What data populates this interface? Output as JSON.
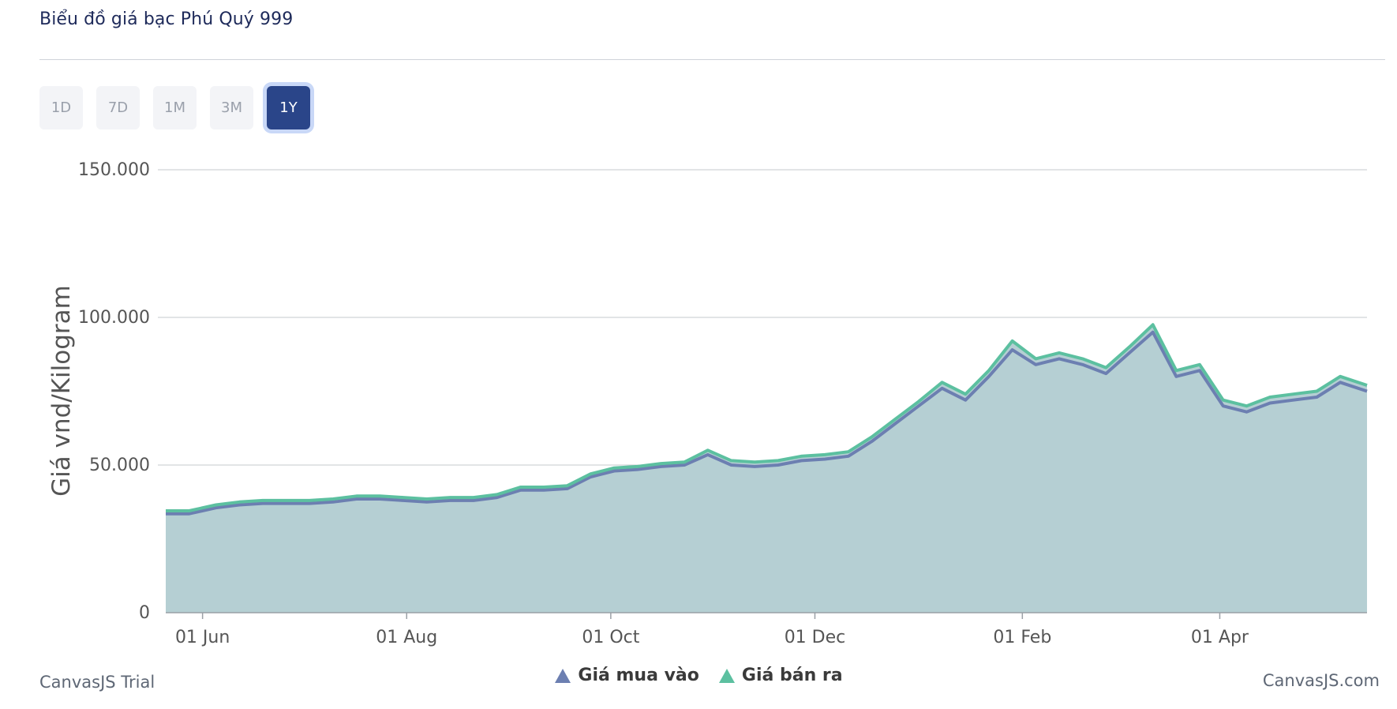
{
  "page": {
    "title": "Biểu đồ giá bạc Phú Quý 999"
  },
  "range_buttons": [
    {
      "label": "1D",
      "active": false
    },
    {
      "label": "7D",
      "active": false
    },
    {
      "label": "1M",
      "active": false
    },
    {
      "label": "3M",
      "active": false
    },
    {
      "label": "1Y",
      "active": true
    }
  ],
  "footer": {
    "left": "CanvasJS Trial",
    "right": "CanvasJS.com"
  },
  "colors": {
    "buy": "#6c7fb1",
    "sell": "#5cc0a0",
    "area": "#b5cfd3",
    "active_button": "#2a4589"
  },
  "chart_data": {
    "type": "area",
    "ylabel": "Giá vnd/Kilogram",
    "ylim": [
      0,
      150000
    ],
    "y_ticks": [
      "150.000",
      "100.000",
      "50.000",
      "0"
    ],
    "x_ticks": [
      "01 Jun",
      "01 Aug",
      "01 Oct",
      "01 Dec",
      "01 Feb",
      "01 Apr"
    ],
    "x_tick_dates": [
      "2025-06-01",
      "2025-08-01",
      "2025-10-01",
      "2025-12-01",
      "2026-02-01",
      "2026-04-01"
    ],
    "x_range": [
      "2025-05-21",
      "2026-05-15"
    ],
    "grid": true,
    "legend_position": "bottom",
    "x": [
      "2025-05-21",
      "2025-05-28",
      "2025-06-05",
      "2025-06-12",
      "2025-06-19",
      "2025-06-26",
      "2025-07-03",
      "2025-07-10",
      "2025-07-17",
      "2025-07-24",
      "2025-07-31",
      "2025-08-07",
      "2025-08-14",
      "2025-08-21",
      "2025-08-28",
      "2025-09-04",
      "2025-09-11",
      "2025-09-18",
      "2025-09-25",
      "2025-10-02",
      "2025-10-09",
      "2025-10-16",
      "2025-10-23",
      "2025-10-30",
      "2025-11-06",
      "2025-11-13",
      "2025-11-20",
      "2025-11-27",
      "2025-12-04",
      "2025-12-11",
      "2025-12-18",
      "2025-12-25",
      "2026-01-01",
      "2026-01-08",
      "2026-01-15",
      "2026-01-22",
      "2026-01-29",
      "2026-02-05",
      "2026-02-12",
      "2026-02-19",
      "2026-02-26",
      "2026-03-05",
      "2026-03-12",
      "2026-03-19",
      "2026-03-26",
      "2026-04-02",
      "2026-04-09",
      "2026-04-16",
      "2026-04-23",
      "2026-04-30",
      "2026-05-07",
      "2026-05-15"
    ],
    "series": [
      {
        "name": "Giá mua vào",
        "values": [
          33500,
          33500,
          35500,
          36500,
          37000,
          37000,
          37000,
          37500,
          38500,
          38500,
          38000,
          37500,
          38000,
          38000,
          39000,
          41500,
          41500,
          42000,
          46000,
          48000,
          48500,
          49500,
          50000,
          53500,
          50000,
          49500,
          50000,
          51500,
          52000,
          53000,
          58000,
          64000,
          70000,
          76000,
          72000,
          80000,
          89000,
          84000,
          86000,
          84000,
          81000,
          88000,
          95000,
          80000,
          82000,
          70000,
          68000,
          71000,
          72000,
          73000,
          78000,
          75000
        ]
      },
      {
        "name": "Giá bán ra",
        "values": [
          34500,
          34500,
          36500,
          37500,
          38000,
          38000,
          38000,
          38500,
          39500,
          39500,
          39000,
          38500,
          39000,
          39000,
          40000,
          42500,
          42500,
          43000,
          47000,
          49000,
          49500,
          50500,
          51000,
          55000,
          51500,
          51000,
          51500,
          53000,
          53500,
          54500,
          59500,
          65500,
          71500,
          78000,
          74000,
          82000,
          92000,
          86000,
          88000,
          86000,
          83000,
          90000,
          97500,
          82000,
          84000,
          72000,
          70000,
          73000,
          74000,
          75000,
          80000,
          77000
        ]
      }
    ]
  }
}
